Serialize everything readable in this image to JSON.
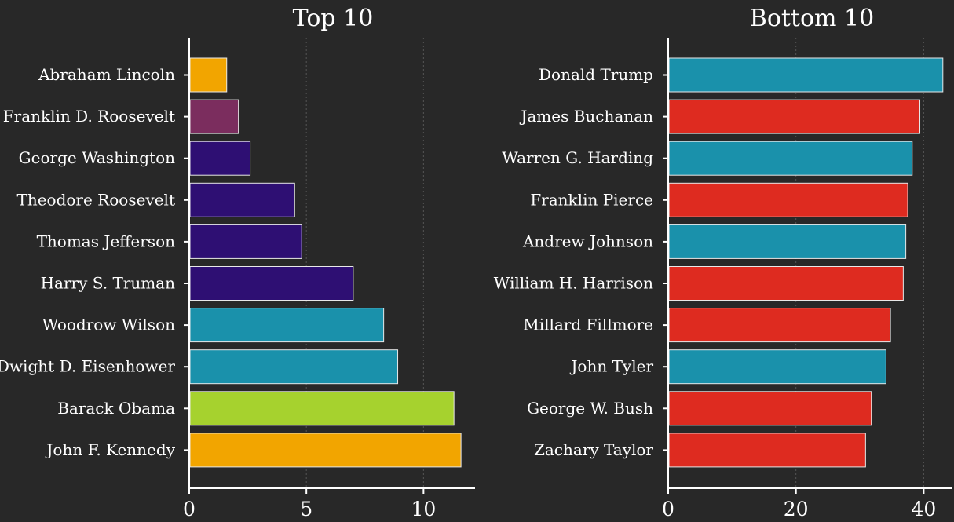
{
  "chart_data": [
    {
      "type": "bar",
      "orientation": "horizontal",
      "title": "Top 10",
      "xlabel": "",
      "ylabel": "",
      "xlim": [
        0,
        12.2
      ],
      "xticks": [
        0,
        5,
        10
      ],
      "xtick_labels": [
        "0",
        "5",
        "10"
      ],
      "grid": "vertical dotted",
      "categories": [
        "Abraham Lincoln",
        "Franklin D. Roosevelt",
        "George Washington",
        "Theodore Roosevelt",
        "Thomas Jefferson",
        "Harry S. Truman",
        "Woodrow Wilson",
        "Dwight D. Eisenhower",
        "Barack Obama",
        "John F. Kennedy"
      ],
      "values": [
        1.6,
        2.1,
        2.6,
        4.5,
        4.8,
        7.0,
        8.3,
        8.9,
        11.3,
        11.6
      ],
      "colors": [
        "#f2a500",
        "#7b2d5e",
        "#2e0f73",
        "#2e0f73",
        "#2e0f73",
        "#2e0f73",
        "#1a91ab",
        "#1a91ab",
        "#a6d22e",
        "#f2a500"
      ]
    },
    {
      "type": "bar",
      "orientation": "horizontal",
      "title": "Bottom 10",
      "xlabel": "",
      "ylabel": "",
      "xlim": [
        0,
        44.5
      ],
      "xticks": [
        0,
        20,
        40
      ],
      "xtick_labels": [
        "0",
        "20",
        "40"
      ],
      "grid": "vertical dotted",
      "categories": [
        "Donald Trump",
        "James Buchanan",
        "Warren G. Harding",
        "Franklin Pierce",
        "Andrew Johnson",
        "William H. Harrison",
        "Millard Fillmore",
        "John Tyler",
        "George W. Bush",
        "Zachary Taylor"
      ],
      "values": [
        43.0,
        39.4,
        38.2,
        37.5,
        37.2,
        36.8,
        34.8,
        34.1,
        31.8,
        30.9
      ],
      "colors": [
        "#1a91ab",
        "#de2b20",
        "#1a91ab",
        "#de2b20",
        "#1a91ab",
        "#de2b20",
        "#de2b20",
        "#1a91ab",
        "#de2b20",
        "#de2b20"
      ]
    }
  ]
}
